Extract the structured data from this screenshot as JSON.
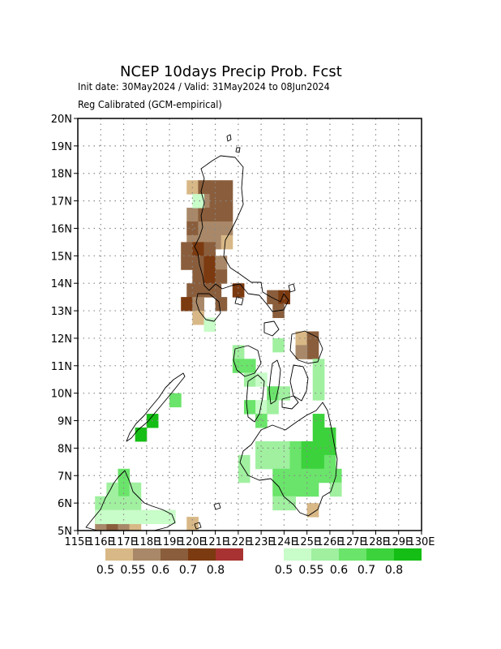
{
  "title": "NCEP 10days Precip Prob. Fcst",
  "subtitle_line1": "Init date: 30May2024 / Valid: 31May2024 to 08Jun2024",
  "subtitle_line2": "Reg Calibrated (GCM-empirical)",
  "map": {
    "lon_range": [
      115,
      130
    ],
    "lat_range": [
      5,
      20
    ],
    "lat_ticks": [
      "5N",
      "6N",
      "7N",
      "8N",
      "9N",
      "10N",
      "11N",
      "12N",
      "13N",
      "14N",
      "15N",
      "16N",
      "17N",
      "18N",
      "19N",
      "20N"
    ],
    "lon_ticks": [
      "115E",
      "116E",
      "117E",
      "118E",
      "119E",
      "120E",
      "121E",
      "122E",
      "123E",
      "124E",
      "125E",
      "126E",
      "127E",
      "128E",
      "129E",
      "130E"
    ],
    "grid": "dotted",
    "dry_colors": [
      "#d8b886",
      "#a88868",
      "#8a5e3c",
      "#7c3a10",
      "#a83232"
    ],
    "wet_colors": [
      "#c8fcc8",
      "#a0f0a0",
      "#6ae46a",
      "#3cd23c",
      "#14be14"
    ],
    "cells_dry": [
      [
        120.0,
        17.5,
        0
      ],
      [
        120.5,
        17.5,
        2
      ],
      [
        121.0,
        17.5,
        2
      ],
      [
        121.5,
        17.5,
        2
      ],
      [
        120.5,
        17.0,
        1
      ],
      [
        121.0,
        17.0,
        2
      ],
      [
        121.5,
        17.0,
        2
      ],
      [
        120.0,
        16.5,
        1
      ],
      [
        120.5,
        16.5,
        2
      ],
      [
        121.0,
        16.5,
        2
      ],
      [
        121.5,
        16.5,
        2
      ],
      [
        120.0,
        16.0,
        2
      ],
      [
        120.5,
        16.0,
        1
      ],
      [
        121.0,
        16.0,
        1
      ],
      [
        121.5,
        16.0,
        1
      ],
      [
        120.0,
        15.5,
        1
      ],
      [
        120.5,
        15.5,
        1
      ],
      [
        121.0,
        15.5,
        1
      ],
      [
        121.5,
        15.5,
        0
      ],
      [
        119.75,
        15.25,
        2
      ],
      [
        120.25,
        15.25,
        3
      ],
      [
        120.75,
        15.25,
        2
      ],
      [
        119.75,
        14.75,
        2
      ],
      [
        120.25,
        14.75,
        2
      ],
      [
        120.75,
        14.75,
        3
      ],
      [
        121.25,
        14.75,
        1
      ],
      [
        120.25,
        14.25,
        2
      ],
      [
        120.75,
        14.25,
        3
      ],
      [
        121.25,
        14.25,
        2
      ],
      [
        120.0,
        13.75,
        2
      ],
      [
        120.5,
        13.75,
        2
      ],
      [
        121.0,
        13.75,
        2
      ],
      [
        122.0,
        13.75,
        3
      ],
      [
        119.75,
        13.25,
        3
      ],
      [
        120.25,
        13.25,
        1
      ],
      [
        121.25,
        13.25,
        2
      ],
      [
        120.25,
        12.75,
        0
      ],
      [
        123.5,
        13.5,
        2
      ],
      [
        124.0,
        13.5,
        3
      ],
      [
        123.75,
        13.0,
        2
      ],
      [
        124.75,
        12.0,
        0
      ],
      [
        125.25,
        12.0,
        2
      ],
      [
        125.25,
        11.5,
        2
      ],
      [
        124.75,
        11.5,
        1
      ],
      [
        125.25,
        5.75,
        0
      ],
      [
        116.0,
        5.25,
        1
      ],
      [
        116.5,
        5.25,
        2
      ],
      [
        117.0,
        5.25,
        1
      ],
      [
        117.5,
        5.25,
        0
      ],
      [
        120.0,
        5.25,
        0
      ]
    ],
    "cells_wet": [
      [
        120.25,
        17.0,
        0
      ],
      [
        120.75,
        12.5,
        0
      ],
      [
        122.0,
        11.5,
        1
      ],
      [
        122.0,
        11.0,
        2
      ],
      [
        122.5,
        11.0,
        2
      ],
      [
        122.5,
        10.5,
        1
      ],
      [
        123.0,
        10.5,
        0
      ],
      [
        122.5,
        9.5,
        2
      ],
      [
        123.0,
        9.5,
        0
      ],
      [
        123.0,
        9.0,
        2
      ],
      [
        123.5,
        10.0,
        2
      ],
      [
        124.0,
        10.0,
        1
      ],
      [
        123.5,
        9.5,
        1
      ],
      [
        123.75,
        11.75,
        1
      ],
      [
        125.5,
        11.0,
        1
      ],
      [
        125.5,
        10.5,
        1
      ],
      [
        125.5,
        10.0,
        1
      ],
      [
        119.25,
        9.75,
        2
      ],
      [
        118.25,
        9.0,
        4
      ],
      [
        117.75,
        8.5,
        4
      ],
      [
        119.0,
        5.5,
        0
      ],
      [
        122.25,
        7.5,
        1
      ],
      [
        122.25,
        7.0,
        1
      ],
      [
        123.0,
        8.0,
        1
      ],
      [
        123.5,
        8.0,
        1
      ],
      [
        124.0,
        8.0,
        1
      ],
      [
        124.5,
        8.0,
        2
      ],
      [
        125.0,
        8.0,
        3
      ],
      [
        125.5,
        8.0,
        3
      ],
      [
        126.0,
        8.0,
        3
      ],
      [
        125.5,
        8.5,
        3
      ],
      [
        125.5,
        9.0,
        3
      ],
      [
        126.0,
        8.5,
        3
      ],
      [
        123.0,
        7.5,
        1
      ],
      [
        123.5,
        7.5,
        1
      ],
      [
        124.0,
        7.5,
        1
      ],
      [
        124.5,
        7.5,
        2
      ],
      [
        125.0,
        7.5,
        3
      ],
      [
        125.5,
        7.5,
        3
      ],
      [
        126.0,
        7.5,
        2
      ],
      [
        123.75,
        7.0,
        2
      ],
      [
        124.25,
        7.0,
        2
      ],
      [
        124.75,
        7.0,
        2
      ],
      [
        125.25,
        7.0,
        2
      ],
      [
        125.75,
        7.0,
        2
      ],
      [
        126.25,
        7.0,
        2
      ],
      [
        123.75,
        6.5,
        2
      ],
      [
        124.25,
        6.5,
        2
      ],
      [
        124.75,
        6.5,
        2
      ],
      [
        125.25,
        6.5,
        2
      ],
      [
        126.25,
        6.5,
        1
      ],
      [
        123.75,
        6.0,
        1
      ],
      [
        124.25,
        6.0,
        1
      ],
      [
        117.0,
        7.0,
        2
      ],
      [
        117.0,
        6.5,
        2
      ],
      [
        116.5,
        6.5,
        1
      ],
      [
        117.5,
        6.5,
        1
      ],
      [
        116.5,
        6.0,
        1
      ],
      [
        117.0,
        6.0,
        1
      ],
      [
        117.5,
        6.0,
        1
      ],
      [
        116.0,
        6.0,
        1
      ],
      [
        116.0,
        5.5,
        0
      ],
      [
        116.5,
        5.5,
        0
      ],
      [
        117.0,
        5.5,
        0
      ],
      [
        117.5,
        5.5,
        0
      ],
      [
        118.0,
        5.5,
        0
      ],
      [
        118.5,
        5.5,
        0
      ]
    ]
  },
  "legend": {
    "dry_labels": [
      "0.5",
      "0.55",
      "0.6",
      "0.7",
      "0.8"
    ],
    "wet_labels": [
      "0.5",
      "0.55",
      "0.6",
      "0.7",
      "0.8"
    ]
  }
}
